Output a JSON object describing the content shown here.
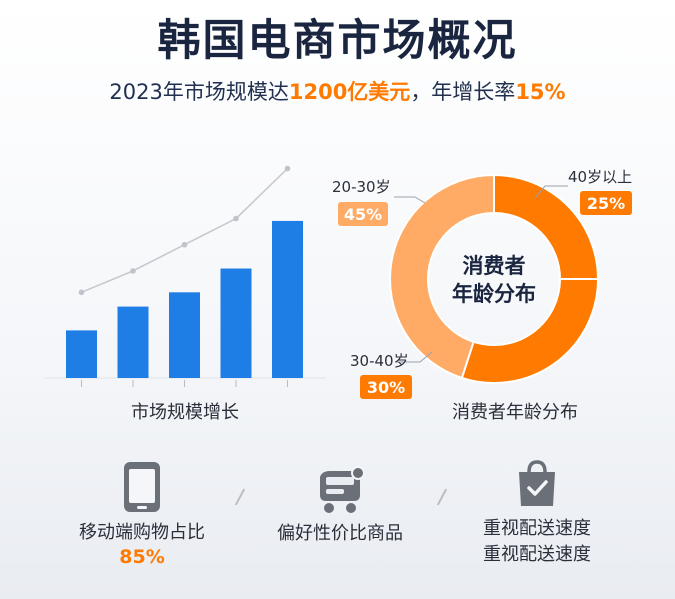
{
  "header": {
    "title": "韩国电商市场概况",
    "subtitle_prefix": "2023年市场规模达",
    "subtitle_value": "1200亿美元",
    "subtitle_mid": "，年增长率",
    "subtitle_rate": "15%"
  },
  "colors": {
    "bar": "#1f7de6",
    "trend_line": "#c7c9cf",
    "donut_orange": "#ff7a00",
    "donut_light": "#ffab66",
    "accent": "#ff7a00"
  },
  "chart_data": [
    {
      "type": "bar",
      "caption": "市场规模增长",
      "values": [
        2,
        3,
        3.6,
        4.6,
        6.6
      ],
      "trend_line": [
        3.6,
        4.5,
        5.6,
        6.7,
        8.8
      ],
      "ylim": [
        0,
        10
      ],
      "grid": false
    },
    {
      "type": "pie",
      "caption": "消费者年龄分布",
      "center_label_line1": "消费者",
      "center_label_line2": "年龄分布",
      "slices": [
        {
          "label": "40岁以上",
          "value": 25,
          "value_label": "25%"
        },
        {
          "label": "30-40岁",
          "value": 30,
          "value_label": "30%"
        },
        {
          "label": "20-30岁",
          "value": 45,
          "value_label": "45%"
        }
      ]
    }
  ],
  "features": [
    {
      "icon": "smartphone-icon",
      "label": "移动端购物占比",
      "value": "85%"
    },
    {
      "icon": "shopping-cart-icon",
      "label": "偏好性价比商品"
    },
    {
      "icon": "shopping-bag-check-icon",
      "label": "重视配送速度",
      "label2": "重视配送速度"
    }
  ]
}
